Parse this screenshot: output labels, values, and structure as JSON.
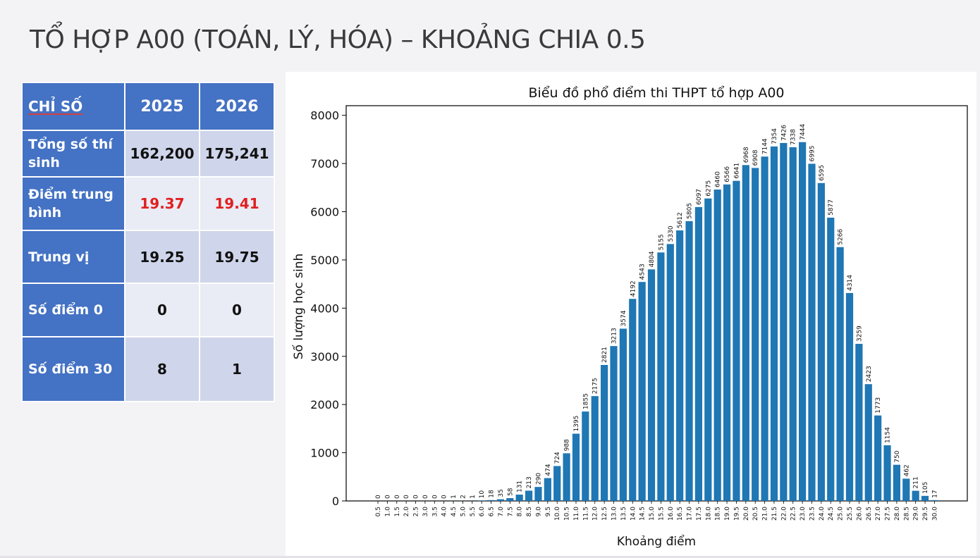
{
  "slide": {
    "title": "TỔ HỢP A00 (TOÁN, LÝ, HÓA) – KHOẢNG CHIA 0.5"
  },
  "table": {
    "headers": [
      "CHỈ SỐ",
      "2025",
      "2026"
    ],
    "rows": [
      {
        "label": "Tổng số thí sinh",
        "v2025": "162,200",
        "v2026": "175,241"
      },
      {
        "label": "Điểm trung bình",
        "v2025": "19.37",
        "v2026": "19.41"
      },
      {
        "label": "Trung vị",
        "v2025": "19.25",
        "v2026": "19.75"
      },
      {
        "label": "Số điểm 0",
        "v2025": "0",
        "v2026": "0"
      },
      {
        "label": "Số điểm 30",
        "v2025": "8",
        "v2026": "1"
      }
    ],
    "highlight_color": "#e02020"
  },
  "chart_data": {
    "type": "bar",
    "title": "Biểu đồ phổ điểm thi THPT tổ hợp A00",
    "xlabel": "Khoảng điểm",
    "ylabel": "Số lượng học sinh",
    "ylim": [
      0,
      8200
    ],
    "yticks": [
      0,
      1000,
      2000,
      3000,
      4000,
      5000,
      6000,
      7000,
      8000
    ],
    "bar_color": "#1f77b4",
    "categories": [
      "0.5",
      "1.0",
      "1.5",
      "2.0",
      "2.5",
      "3.0",
      "3.5",
      "4.0",
      "4.5",
      "5.0",
      "5.5",
      "6.0",
      "6.5",
      "7.0",
      "7.5",
      "8.0",
      "8.5",
      "9.0",
      "9.5",
      "10.0",
      "10.5",
      "11.0",
      "11.5",
      "12.0",
      "12.5",
      "13.0",
      "13.5",
      "14.0",
      "14.5",
      "15.0",
      "15.5",
      "16.0",
      "16.5",
      "17.0",
      "17.5",
      "18.0",
      "18.5",
      "19.0",
      "19.5",
      "20.0",
      "20.5",
      "21.0",
      "21.5",
      "22.0",
      "22.5",
      "23.0",
      "23.5",
      "24.0",
      "24.5",
      "25.0",
      "25.5",
      "26.0",
      "26.5",
      "27.0",
      "27.5",
      "28.0",
      "28.5",
      "29.0",
      "29.5",
      "30.0"
    ],
    "values": [
      0,
      0,
      0,
      0,
      0,
      0,
      0,
      0,
      1,
      2,
      1,
      10,
      18,
      35,
      58,
      131,
      213,
      290,
      474,
      724,
      988,
      1395,
      1855,
      2175,
      2821,
      3213,
      3574,
      4192,
      4543,
      4804,
      5155,
      5330,
      5612,
      5805,
      6097,
      6275,
      6460,
      6566,
      6641,
      6968,
      6908,
      7144,
      7354,
      7426,
      7338,
      7444,
      6995,
      6595,
      5877,
      5266,
      4314,
      3259,
      2423,
      1773,
      1154,
      750,
      462,
      211,
      105,
      17
    ]
  }
}
